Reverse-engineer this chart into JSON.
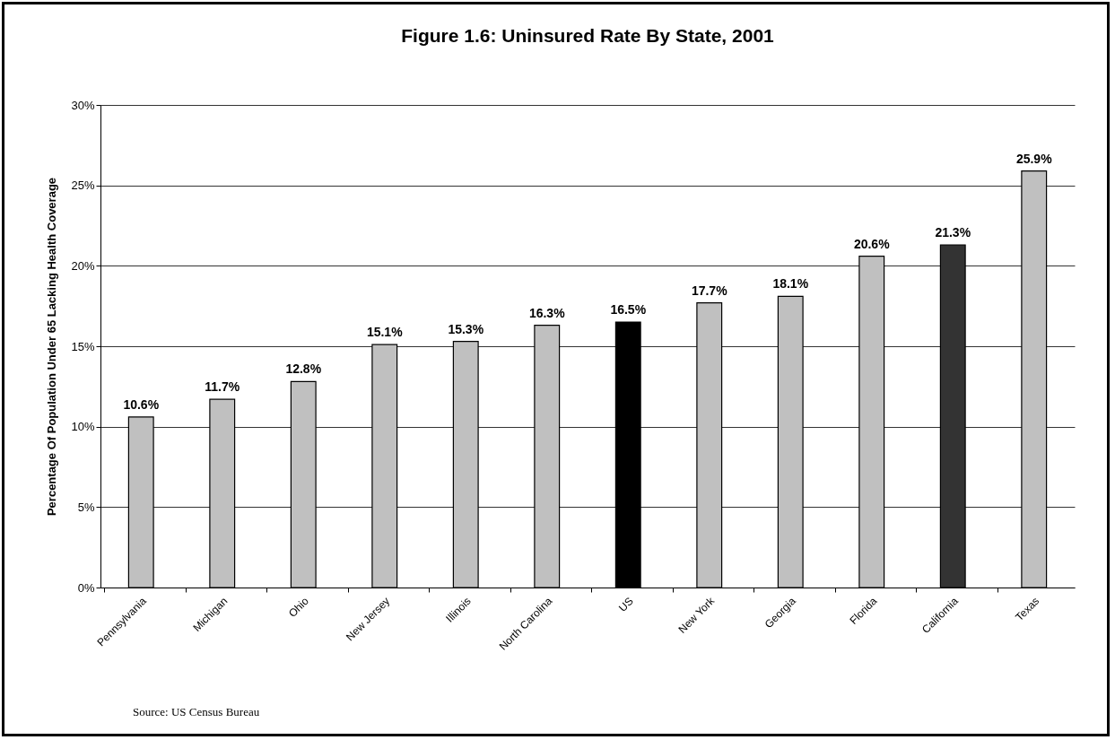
{
  "chart_data": {
    "type": "bar",
    "title": "Figure 1.6: Uninsured Rate By State, 2001",
    "ylabel": "Percentage Of Population Under 65 Lacking Health Coverage",
    "categories": [
      "Pennsylvania",
      "Michigan",
      "Ohio",
      "New Jersey",
      "Illinois",
      "North Carolina",
      "US",
      "New York",
      "Georgia",
      "Florida",
      "California",
      "Texas"
    ],
    "values": [
      10.6,
      11.7,
      12.8,
      15.1,
      15.3,
      16.3,
      16.5,
      17.7,
      18.1,
      20.6,
      21.3,
      25.9
    ],
    "value_labels": [
      "10.6%",
      "11.7%",
      "12.8%",
      "15.1%",
      "15.3%",
      "16.3%",
      "16.5%",
      "17.7%",
      "18.1%",
      "20.6%",
      "21.3%",
      "25.9%"
    ],
    "colors": [
      "#c0c0c0",
      "#c0c0c0",
      "#c0c0c0",
      "#c0c0c0",
      "#c0c0c0",
      "#c0c0c0",
      "#000000",
      "#c0c0c0",
      "#c0c0c0",
      "#c0c0c0",
      "#333333",
      "#c0c0c0"
    ],
    "ylim": [
      0,
      30
    ],
    "yticks": [
      {
        "value": 0,
        "label": "0%"
      },
      {
        "value": 5,
        "label": "5%"
      },
      {
        "value": 10,
        "label": "10%"
      },
      {
        "value": 15,
        "label": "15%"
      },
      {
        "value": 20,
        "label": "20%"
      },
      {
        "value": 25,
        "label": "25%"
      },
      {
        "value": 30,
        "label": "30%"
      }
    ],
    "grid": "y",
    "annotations": [
      "Source: US Census Bureau"
    ]
  }
}
